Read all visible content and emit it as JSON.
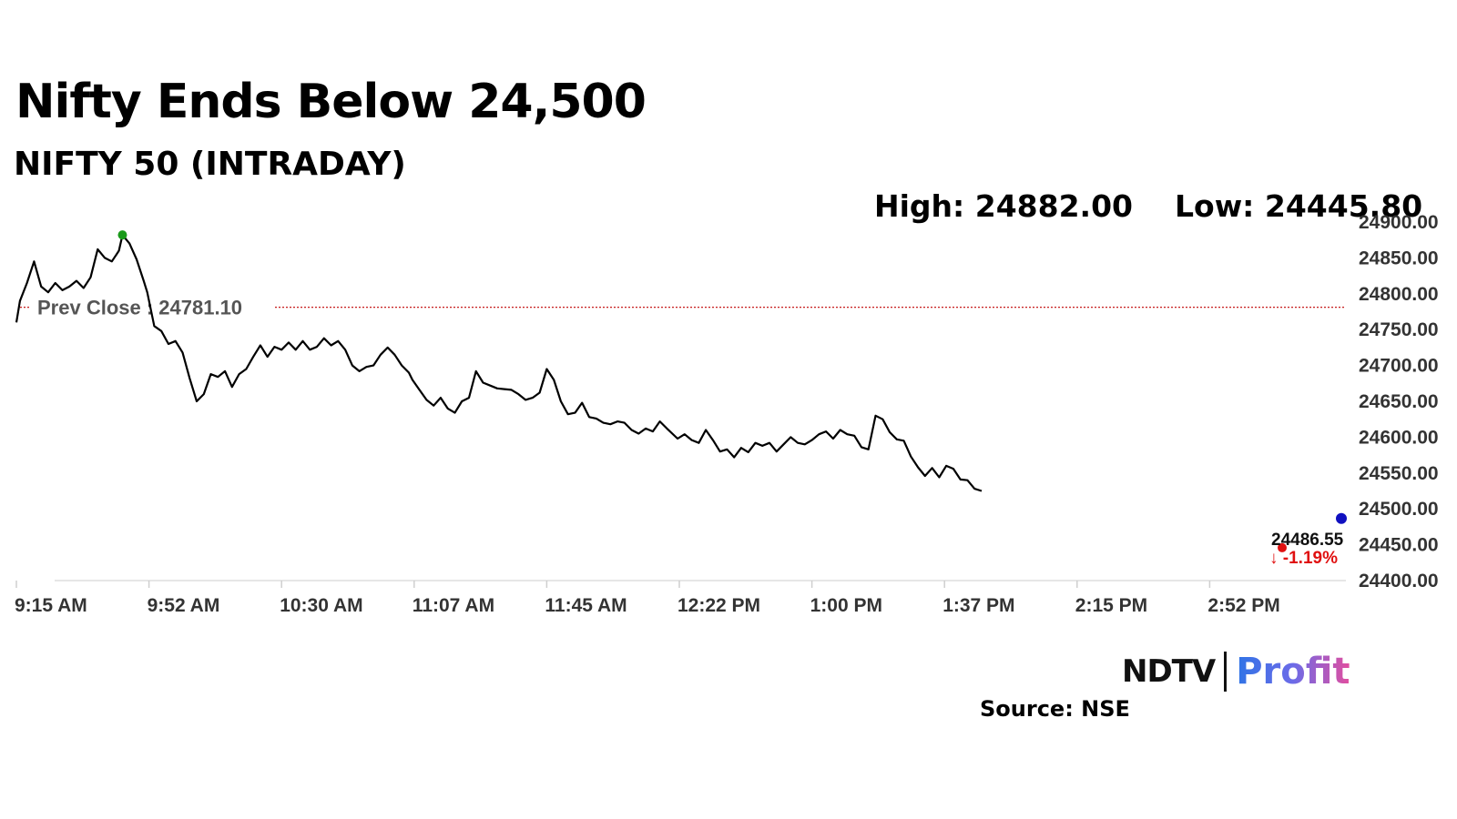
{
  "header": {
    "title": "Nifty Ends Below 24,500",
    "subtitle": "NIFTY 50 (INTRADAY)",
    "high_text": "High: 24882.00",
    "low_text": "Low: 24445.80"
  },
  "footer": {
    "logo_ndtv": "NDTV",
    "logo_profit": "Profit",
    "source": "Source: NSE"
  },
  "colors": {
    "line": "#000000",
    "prev_close_line": "#c00000",
    "high_marker": "#1a9a1a",
    "low_marker": "#e01010",
    "last_marker": "#1010c0",
    "change_text": "#e01010",
    "profit_gradient": [
      "#2f74e6",
      "#e04fa0"
    ]
  },
  "chart_data": {
    "type": "line",
    "title": "NIFTY 50 (INTRADAY)",
    "x_tick_labels": [
      "9:15 AM",
      "9:52 AM",
      "10:30 AM",
      "11:07 AM",
      "11:45 AM",
      "12:22 PM",
      "1:00 PM",
      "1:37 PM",
      "2:15 PM",
      "2:52 PM"
    ],
    "y_tick_labels": [
      "24900.00",
      "24850.00",
      "24800.00",
      "24750.00",
      "24700.00",
      "24650.00",
      "24600.00",
      "24550.00",
      "24500.00",
      "24450.00",
      "24400.00"
    ],
    "ylim": [
      24400,
      24900
    ],
    "y_axis_position": "right",
    "grid": false,
    "prev_close": {
      "label": "Prev Close : 24781.10",
      "value": 24781.1
    },
    "high": {
      "value": 24882.0,
      "time": "09:45"
    },
    "low": {
      "value": 24445.8,
      "time": "15:13"
    },
    "last": {
      "value": 24486.55,
      "label": "24486.55",
      "change_label": "↓ -1.19%"
    },
    "series": [
      {
        "points": [
          [
            "09:15",
            24760
          ],
          [
            "09:16",
            24790
          ],
          [
            "09:18",
            24815
          ],
          [
            "09:20",
            24845
          ],
          [
            "09:22",
            24810
          ],
          [
            "09:24",
            24802
          ],
          [
            "09:26",
            24815
          ],
          [
            "09:28",
            24805
          ],
          [
            "09:30",
            24810
          ],
          [
            "09:32",
            24818
          ],
          [
            "09:34",
            24808
          ],
          [
            "09:36",
            24823
          ],
          [
            "09:38",
            24862
          ],
          [
            "09:40",
            24850
          ],
          [
            "09:42",
            24845
          ],
          [
            "09:44",
            24860
          ],
          [
            "09:45",
            24882
          ],
          [
            "09:47",
            24870
          ],
          [
            "09:49",
            24848
          ],
          [
            "09:51",
            24818
          ],
          [
            "09:52",
            24802
          ],
          [
            "09:54",
            24755
          ],
          [
            "09:56",
            24748
          ],
          [
            "09:58",
            24730
          ],
          [
            "10:00",
            24734
          ],
          [
            "10:02",
            24718
          ],
          [
            "10:04",
            24682
          ],
          [
            "10:06",
            24650
          ],
          [
            "10:08",
            24660
          ],
          [
            "10:10",
            24688
          ],
          [
            "10:12",
            24684
          ],
          [
            "10:14",
            24692
          ],
          [
            "10:16",
            24670
          ],
          [
            "10:18",
            24688
          ],
          [
            "10:20",
            24695
          ],
          [
            "10:22",
            24712
          ],
          [
            "10:24",
            24728
          ],
          [
            "10:26",
            24712
          ],
          [
            "10:28",
            24726
          ],
          [
            "10:30",
            24722
          ],
          [
            "10:32",
            24732
          ],
          [
            "10:34",
            24722
          ],
          [
            "10:36",
            24734
          ],
          [
            "10:38",
            24722
          ],
          [
            "10:40",
            24726
          ],
          [
            "10:42",
            24738
          ],
          [
            "10:44",
            24728
          ],
          [
            "10:46",
            24734
          ],
          [
            "10:48",
            24722
          ],
          [
            "10:50",
            24700
          ],
          [
            "10:52",
            24692
          ],
          [
            "10:54",
            24698
          ],
          [
            "10:56",
            24700
          ],
          [
            "10:58",
            24715
          ],
          [
            "11:00",
            24725
          ],
          [
            "11:02",
            24715
          ],
          [
            "11:04",
            24700
          ],
          [
            "11:06",
            24690
          ],
          [
            "11:07",
            24680
          ],
          [
            "11:09",
            24666
          ],
          [
            "11:11",
            24652
          ],
          [
            "11:13",
            24644
          ],
          [
            "11:15",
            24655
          ],
          [
            "11:17",
            24640
          ],
          [
            "11:19",
            24634
          ],
          [
            "11:21",
            24650
          ],
          [
            "11:23",
            24655
          ],
          [
            "11:25",
            24692
          ],
          [
            "11:27",
            24676
          ],
          [
            "11:29",
            24672
          ],
          [
            "11:31",
            24668
          ],
          [
            "11:33",
            24667
          ],
          [
            "11:35",
            24666
          ],
          [
            "11:37",
            24660
          ],
          [
            "11:39",
            24652
          ],
          [
            "11:41",
            24655
          ],
          [
            "11:43",
            24662
          ],
          [
            "11:45",
            24695
          ],
          [
            "11:47",
            24680
          ],
          [
            "11:49",
            24650
          ],
          [
            "11:51",
            24632
          ],
          [
            "11:53",
            24634
          ],
          [
            "11:55",
            24648
          ],
          [
            "11:57",
            24628
          ],
          [
            "11:59",
            24626
          ],
          [
            "12:01",
            24620
          ],
          [
            "12:03",
            24618
          ],
          [
            "12:05",
            24622
          ],
          [
            "12:07",
            24620
          ],
          [
            "12:09",
            24610
          ],
          [
            "12:11",
            24605
          ],
          [
            "12:13",
            24612
          ],
          [
            "12:15",
            24608
          ],
          [
            "12:17",
            24622
          ],
          [
            "12:19",
            24612
          ],
          [
            "12:22",
            24598
          ],
          [
            "12:24",
            24604
          ],
          [
            "12:26",
            24596
          ],
          [
            "12:28",
            24592
          ],
          [
            "12:30",
            24610
          ],
          [
            "12:32",
            24596
          ],
          [
            "12:34",
            24580
          ],
          [
            "12:36",
            24583
          ],
          [
            "12:38",
            24572
          ],
          [
            "12:40",
            24585
          ],
          [
            "12:42",
            24579
          ],
          [
            "12:44",
            24592
          ],
          [
            "12:46",
            24588
          ],
          [
            "12:48",
            24592
          ],
          [
            "12:50",
            24580
          ],
          [
            "12:52",
            24590
          ],
          [
            "12:54",
            24600
          ],
          [
            "12:56",
            24592
          ],
          [
            "12:58",
            24590
          ],
          [
            "13:00",
            24596
          ],
          [
            "13:02",
            24604
          ],
          [
            "13:04",
            24608
          ],
          [
            "13:06",
            24598
          ],
          [
            "13:08",
            24610
          ],
          [
            "13:10",
            24604
          ],
          [
            "13:12",
            24602
          ],
          [
            "13:14",
            24586
          ],
          [
            "13:16",
            24583
          ],
          [
            "13:18",
            24630
          ],
          [
            "13:20",
            24625
          ],
          [
            "13:22",
            24607
          ],
          [
            "13:24",
            24597
          ],
          [
            "13:26",
            24595
          ],
          [
            "13:28",
            24573
          ],
          [
            "13:30",
            24558
          ],
          [
            "13:32",
            24546
          ],
          [
            "13:34",
            24557
          ],
          [
            "13:36",
            24544
          ],
          [
            "13:38",
            24560
          ],
          [
            "13:40",
            24556
          ],
          [
            "13:42",
            24541
          ],
          [
            "13:44",
            24540
          ],
          [
            "13:46",
            24528
          ],
          [
            "13:48",
            24525
          ]
        ]
      }
    ]
  }
}
